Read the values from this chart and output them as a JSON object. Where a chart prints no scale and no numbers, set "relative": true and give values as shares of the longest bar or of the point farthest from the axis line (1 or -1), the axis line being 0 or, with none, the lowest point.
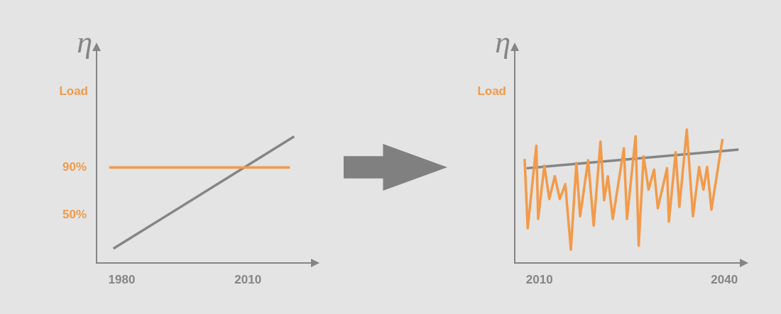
{
  "chart_data": [
    {
      "type": "line",
      "ylabel": "η",
      "xlim": [
        1974,
        2025
      ],
      "xticks": [
        1980,
        2010
      ],
      "ylim": [
        10,
        190
      ],
      "yticks": [
        {
          "value": 50,
          "label": "50%"
        },
        {
          "value": 90,
          "label": "90%"
        }
      ],
      "series": [
        {
          "name": "Load",
          "color": "#f39a4a",
          "x": [
            1977,
            2020
          ],
          "values": [
            90,
            90
          ]
        },
        {
          "color": "#858585",
          "x": [
            1978,
            2021
          ],
          "values": [
            22,
            116
          ]
        }
      ]
    },
    {
      "type": "line",
      "ylabel": "η",
      "relative": true,
      "xlim": [
        2006,
        2042.5
      ],
      "xticks": [
        2010,
        2040
      ],
      "series": [
        {
          "name": "Load",
          "color": "#f39a4a",
          "x": [
            2007.6,
            2008.1,
            2009.5,
            2009.8,
            2010.8,
            2011.6,
            2012.5,
            2013.3,
            2014.2,
            2015.1,
            2016.0,
            2016.6,
            2017.9,
            2018.8,
            2019.9,
            2020.5,
            2021.1,
            2021.9,
            2023.7,
            2024.2,
            2025.6,
            2026.1,
            2026.9,
            2027.7,
            2028.6,
            2029.2,
            2030.7,
            2031.0,
            2032.1,
            2032.7,
            2033.9,
            2034.9,
            2035.9,
            2036.6,
            2037.2,
            2037.9,
            2039.7
          ],
          "values": [
            0.78,
            0.26,
            0.88,
            0.33,
            0.73,
            0.48,
            0.65,
            0.48,
            0.59,
            0.1,
            0.75,
            0.35,
            0.77,
            0.28,
            0.91,
            0.47,
            0.65,
            0.33,
            0.86,
            0.33,
            0.95,
            0.13,
            0.8,
            0.55,
            0.7,
            0.41,
            0.71,
            0.31,
            0.83,
            0.42,
            1.0,
            0.35,
            0.72,
            0.55,
            0.72,
            0.4,
            0.93
          ]
        },
        {
          "color": "#858585",
          "x": [
            2007.9,
            2042.3
          ],
          "values": [
            0.71,
            0.85
          ]
        }
      ]
    }
  ]
}
